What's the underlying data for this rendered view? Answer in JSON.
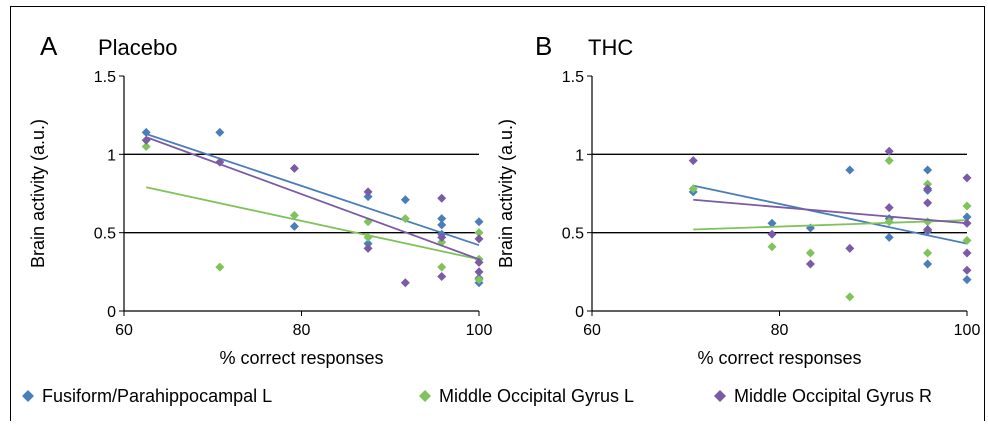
{
  "legend": [
    {
      "name": "Fusiform/Parahippocampal L",
      "color": "#4a7ebb"
    },
    {
      "name": "Middle Occipital Gyrus L",
      "color": "#7fc35a"
    },
    {
      "name": "Middle Occipital Gyrus R",
      "color": "#7b5aa6"
    }
  ],
  "chart_data": [
    {
      "type": "scatter",
      "panel_letter": "A",
      "title": "Placebo",
      "xlabel": "% correct responses",
      "ylabel": "Brain activity (a.u.)",
      "xlim": [
        60,
        100
      ],
      "ylim": [
        0,
        1.5
      ],
      "xticks": [
        "60",
        "80",
        "100"
      ],
      "yticks": [
        "0",
        "0.5",
        "1",
        "1.5"
      ],
      "gridlines_y": [
        0.5,
        1
      ],
      "legend_position": "bottom",
      "series": [
        {
          "name": "Fusiform/Parahippocampal L",
          "color": "#4a7ebb",
          "points": [
            [
              62.5,
              1.14
            ],
            [
              70.8,
              1.14
            ],
            [
              79.2,
              0.54
            ],
            [
              87.5,
              0.73
            ],
            [
              87.5,
              0.43
            ],
            [
              91.7,
              0.71
            ],
            [
              95.8,
              0.59
            ],
            [
              95.8,
              0.55
            ],
            [
              95.8,
              0.49
            ],
            [
              100,
              0.57
            ],
            [
              100,
              0.21
            ],
            [
              100,
              0.18
            ]
          ],
          "trend": [
            [
              62.5,
              1.13
            ],
            [
              100,
              0.42
            ]
          ]
        },
        {
          "name": "Middle Occipital Gyrus L",
          "color": "#7fc35a",
          "points": [
            [
              62.5,
              1.05
            ],
            [
              70.8,
              0.28
            ],
            [
              79.2,
              0.61
            ],
            [
              87.5,
              0.57
            ],
            [
              87.5,
              0.47
            ],
            [
              91.7,
              0.59
            ],
            [
              95.8,
              0.44
            ],
            [
              95.8,
              0.28
            ],
            [
              100,
              0.5
            ],
            [
              100,
              0.33
            ],
            [
              100,
              0.2
            ]
          ],
          "trend": [
            [
              62.5,
              0.79
            ],
            [
              100,
              0.33
            ]
          ]
        },
        {
          "name": "Middle Occipital Gyrus R",
          "color": "#7b5aa6",
          "points": [
            [
              62.5,
              1.09
            ],
            [
              70.8,
              0.95
            ],
            [
              79.2,
              0.91
            ],
            [
              87.5,
              0.76
            ],
            [
              87.5,
              0.4
            ],
            [
              91.7,
              0.18
            ],
            [
              95.8,
              0.72
            ],
            [
              95.8,
              0.47
            ],
            [
              95.8,
              0.22
            ],
            [
              100,
              0.46
            ],
            [
              100,
              0.31
            ],
            [
              100,
              0.25
            ]
          ],
          "trend": [
            [
              62.5,
              1.11
            ],
            [
              100,
              0.33
            ]
          ]
        }
      ]
    },
    {
      "type": "scatter",
      "panel_letter": "B",
      "title": "THC",
      "xlabel": "% correct responses",
      "ylabel": "Brain activity (a.u.)",
      "xlim": [
        60,
        100
      ],
      "ylim": [
        0,
        1.5
      ],
      "xticks": [
        "60",
        "80",
        "100"
      ],
      "yticks": [
        "0",
        "0.5",
        "1",
        "1.5"
      ],
      "gridlines_y": [
        0.5,
        1
      ],
      "legend_position": "bottom",
      "series": [
        {
          "name": "Fusiform/Parahippocampal L",
          "color": "#4a7ebb",
          "points": [
            [
              70.8,
              0.76
            ],
            [
              79.2,
              0.56
            ],
            [
              83.3,
              0.53
            ],
            [
              87.5,
              0.9
            ],
            [
              91.7,
              0.47
            ],
            [
              91.7,
              0.59
            ],
            [
              95.8,
              0.9
            ],
            [
              95.8,
              0.77
            ],
            [
              95.8,
              0.51
            ],
            [
              95.8,
              0.3
            ],
            [
              100,
              0.6
            ],
            [
              100,
              0.2
            ]
          ],
          "trend": [
            [
              70.8,
              0.8
            ],
            [
              100,
              0.43
            ]
          ]
        },
        {
          "name": "Middle Occipital Gyrus L",
          "color": "#7fc35a",
          "points": [
            [
              70.8,
              0.78
            ],
            [
              79.2,
              0.41
            ],
            [
              83.3,
              0.37
            ],
            [
              87.5,
              0.09
            ],
            [
              91.7,
              0.96
            ],
            [
              91.7,
              0.57
            ],
            [
              95.8,
              0.81
            ],
            [
              95.8,
              0.57
            ],
            [
              95.8,
              0.37
            ],
            [
              100,
              0.67
            ],
            [
              100,
              0.45
            ]
          ],
          "trend": [
            [
              70.8,
              0.52
            ],
            [
              100,
              0.58
            ]
          ]
        },
        {
          "name": "Middle Occipital Gyrus R",
          "color": "#7b5aa6",
          "points": [
            [
              70.8,
              0.96
            ],
            [
              79.2,
              0.49
            ],
            [
              83.3,
              0.3
            ],
            [
              87.5,
              0.4
            ],
            [
              91.7,
              1.02
            ],
            [
              91.7,
              0.66
            ],
            [
              95.8,
              0.78
            ],
            [
              95.8,
              0.69
            ],
            [
              95.8,
              0.52
            ],
            [
              100,
              0.85
            ],
            [
              100,
              0.56
            ],
            [
              100,
              0.37
            ],
            [
              100,
              0.26
            ]
          ],
          "trend": [
            [
              70.8,
              0.71
            ],
            [
              100,
              0.56
            ]
          ]
        }
      ]
    }
  ]
}
